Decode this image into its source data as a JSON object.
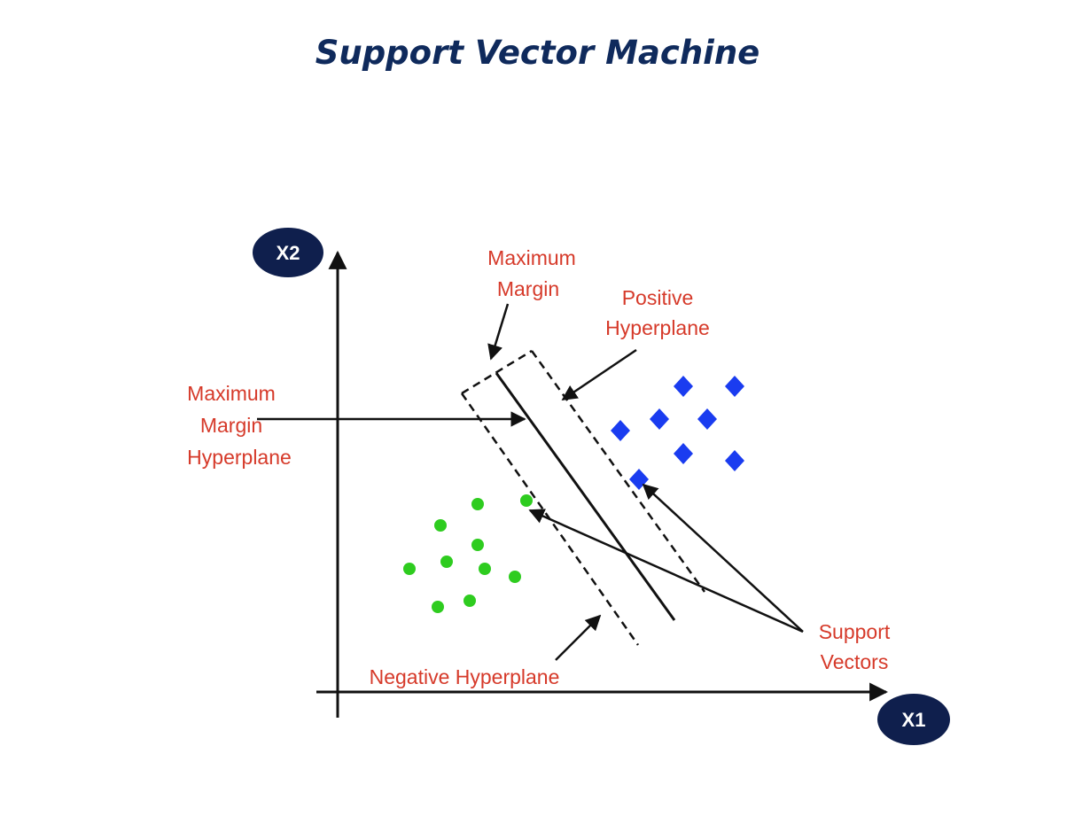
{
  "title": "Support Vector Machine",
  "axes": {
    "x_label": "X1",
    "y_label": "X2"
  },
  "annotations": {
    "maximum_margin": [
      "Maximum",
      "Margin"
    ],
    "positive_hyperplane": [
      "Positive",
      "Hyperplane"
    ],
    "maximum_margin_hyperplane": [
      "Maximum",
      "Margin",
      "Hyperplane"
    ],
    "support_vectors": [
      "Support",
      "Vectors"
    ],
    "negative_hyperplane": "Negative Hyperplane"
  },
  "classes": {
    "positive": {
      "shape": "diamond",
      "color": "#1a3cf0",
      "count": 8
    },
    "negative": {
      "shape": "circle",
      "color": "#2ecc1f",
      "count": 10
    }
  },
  "colors": {
    "annotation_text": "#d63a2a",
    "axis_label_bg": "#0f1f4d",
    "title": "#0f2a5c",
    "line": "#111111"
  }
}
